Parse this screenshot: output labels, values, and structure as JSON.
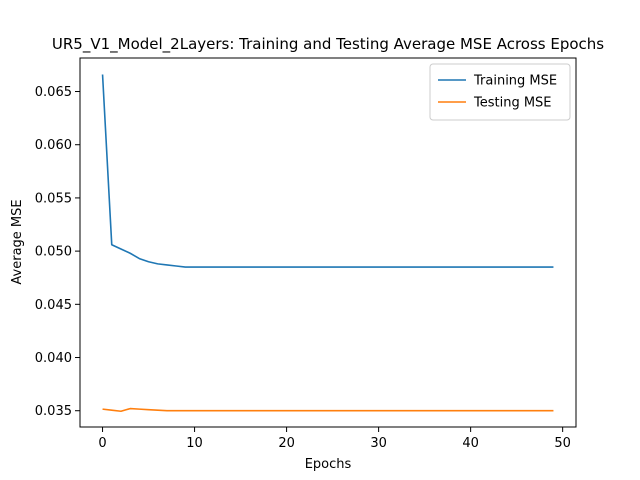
{
  "chart_data": {
    "type": "line",
    "title": "UR5_V1_Model_2Layers: Training and Testing Average MSE Across Epochs",
    "xlabel": "Epochs",
    "ylabel": "Average MSE",
    "xlim": [
      -2.45,
      51.45
    ],
    "ylim": [
      0.03347,
      0.06815
    ],
    "xticks": [
      0,
      10,
      20,
      30,
      40,
      50
    ],
    "xtick_labels": [
      "0",
      "10",
      "20",
      "30",
      "40",
      "50"
    ],
    "yticks": [
      0.035,
      0.04,
      0.045,
      0.05,
      0.055,
      0.06,
      0.065
    ],
    "ytick_labels": [
      "0.035",
      "0.040",
      "0.045",
      "0.050",
      "0.055",
      "0.060",
      "0.065"
    ],
    "grid": false,
    "legend_position": "upper-right",
    "series": [
      {
        "name": "Training MSE",
        "color": "#1f77b4",
        "x": [
          0,
          1,
          2,
          3,
          4,
          5,
          6,
          7,
          8,
          9,
          10,
          11,
          12,
          13,
          14,
          15,
          16,
          17,
          18,
          19,
          20,
          21,
          22,
          23,
          24,
          25,
          26,
          27,
          28,
          29,
          30,
          31,
          32,
          33,
          34,
          35,
          36,
          37,
          38,
          39,
          40,
          41,
          42,
          43,
          44,
          45,
          46,
          47,
          48,
          49
        ],
        "y": [
          0.0666,
          0.0506,
          0.0502,
          0.0498,
          0.0493,
          0.049,
          0.0488,
          0.0487,
          0.0486,
          0.0485,
          0.0485,
          0.0485,
          0.0485,
          0.0485,
          0.0485,
          0.0485,
          0.0485,
          0.0485,
          0.0485,
          0.0485,
          0.0485,
          0.0485,
          0.0485,
          0.0485,
          0.0485,
          0.0485,
          0.0485,
          0.0485,
          0.0485,
          0.0485,
          0.0485,
          0.0485,
          0.0485,
          0.0485,
          0.0485,
          0.0485,
          0.0485,
          0.0485,
          0.0485,
          0.0485,
          0.0485,
          0.0485,
          0.0485,
          0.0485,
          0.0485,
          0.0485,
          0.0485,
          0.0485,
          0.0485,
          0.0485
        ]
      },
      {
        "name": "Testing MSE",
        "color": "#ff7f0e",
        "x": [
          0,
          1,
          2,
          3,
          4,
          5,
          6,
          7,
          8,
          9,
          10,
          11,
          12,
          13,
          14,
          15,
          16,
          17,
          18,
          19,
          20,
          21,
          22,
          23,
          24,
          25,
          26,
          27,
          28,
          29,
          30,
          31,
          32,
          33,
          34,
          35,
          36,
          37,
          38,
          39,
          40,
          41,
          42,
          43,
          44,
          45,
          46,
          47,
          48,
          49
        ],
        "y": [
          0.03515,
          0.03505,
          0.03495,
          0.0352,
          0.03515,
          0.0351,
          0.03505,
          0.035,
          0.035,
          0.035,
          0.035,
          0.035,
          0.035,
          0.035,
          0.035,
          0.035,
          0.035,
          0.035,
          0.035,
          0.035,
          0.035,
          0.035,
          0.035,
          0.035,
          0.035,
          0.035,
          0.035,
          0.035,
          0.035,
          0.035,
          0.035,
          0.035,
          0.035,
          0.035,
          0.035,
          0.035,
          0.035,
          0.035,
          0.035,
          0.035,
          0.035,
          0.035,
          0.035,
          0.035,
          0.035,
          0.035,
          0.035,
          0.035,
          0.035,
          0.035
        ]
      }
    ]
  }
}
